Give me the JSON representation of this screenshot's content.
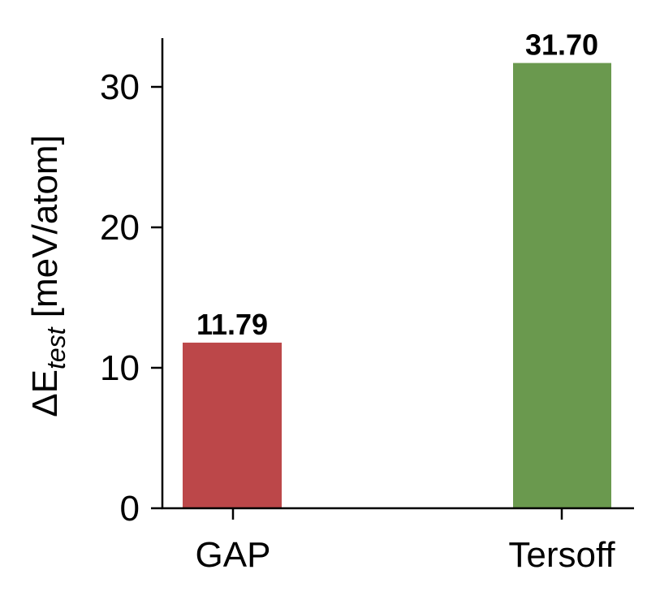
{
  "chart_data": {
    "type": "bar",
    "title": "",
    "xlabel": "",
    "ylabel": "ΔE_test [meV/atom]",
    "ylabel_parts": {
      "prefix": "ΔE",
      "subscript": "test",
      "suffix": " [meV/atom]"
    },
    "categories": [
      "GAP",
      "Tersoff"
    ],
    "values": [
      11.79,
      31.7
    ],
    "value_labels": [
      "11.79",
      "31.70"
    ],
    "colors": [
      "#bc4749",
      "#6a994e"
    ],
    "ylim": [
      0,
      33.5
    ],
    "yticks": [
      0,
      10,
      20,
      30
    ],
    "ytick_labels": [
      "0",
      "10",
      "20",
      "30"
    ],
    "grid": false,
    "legend": null
  }
}
